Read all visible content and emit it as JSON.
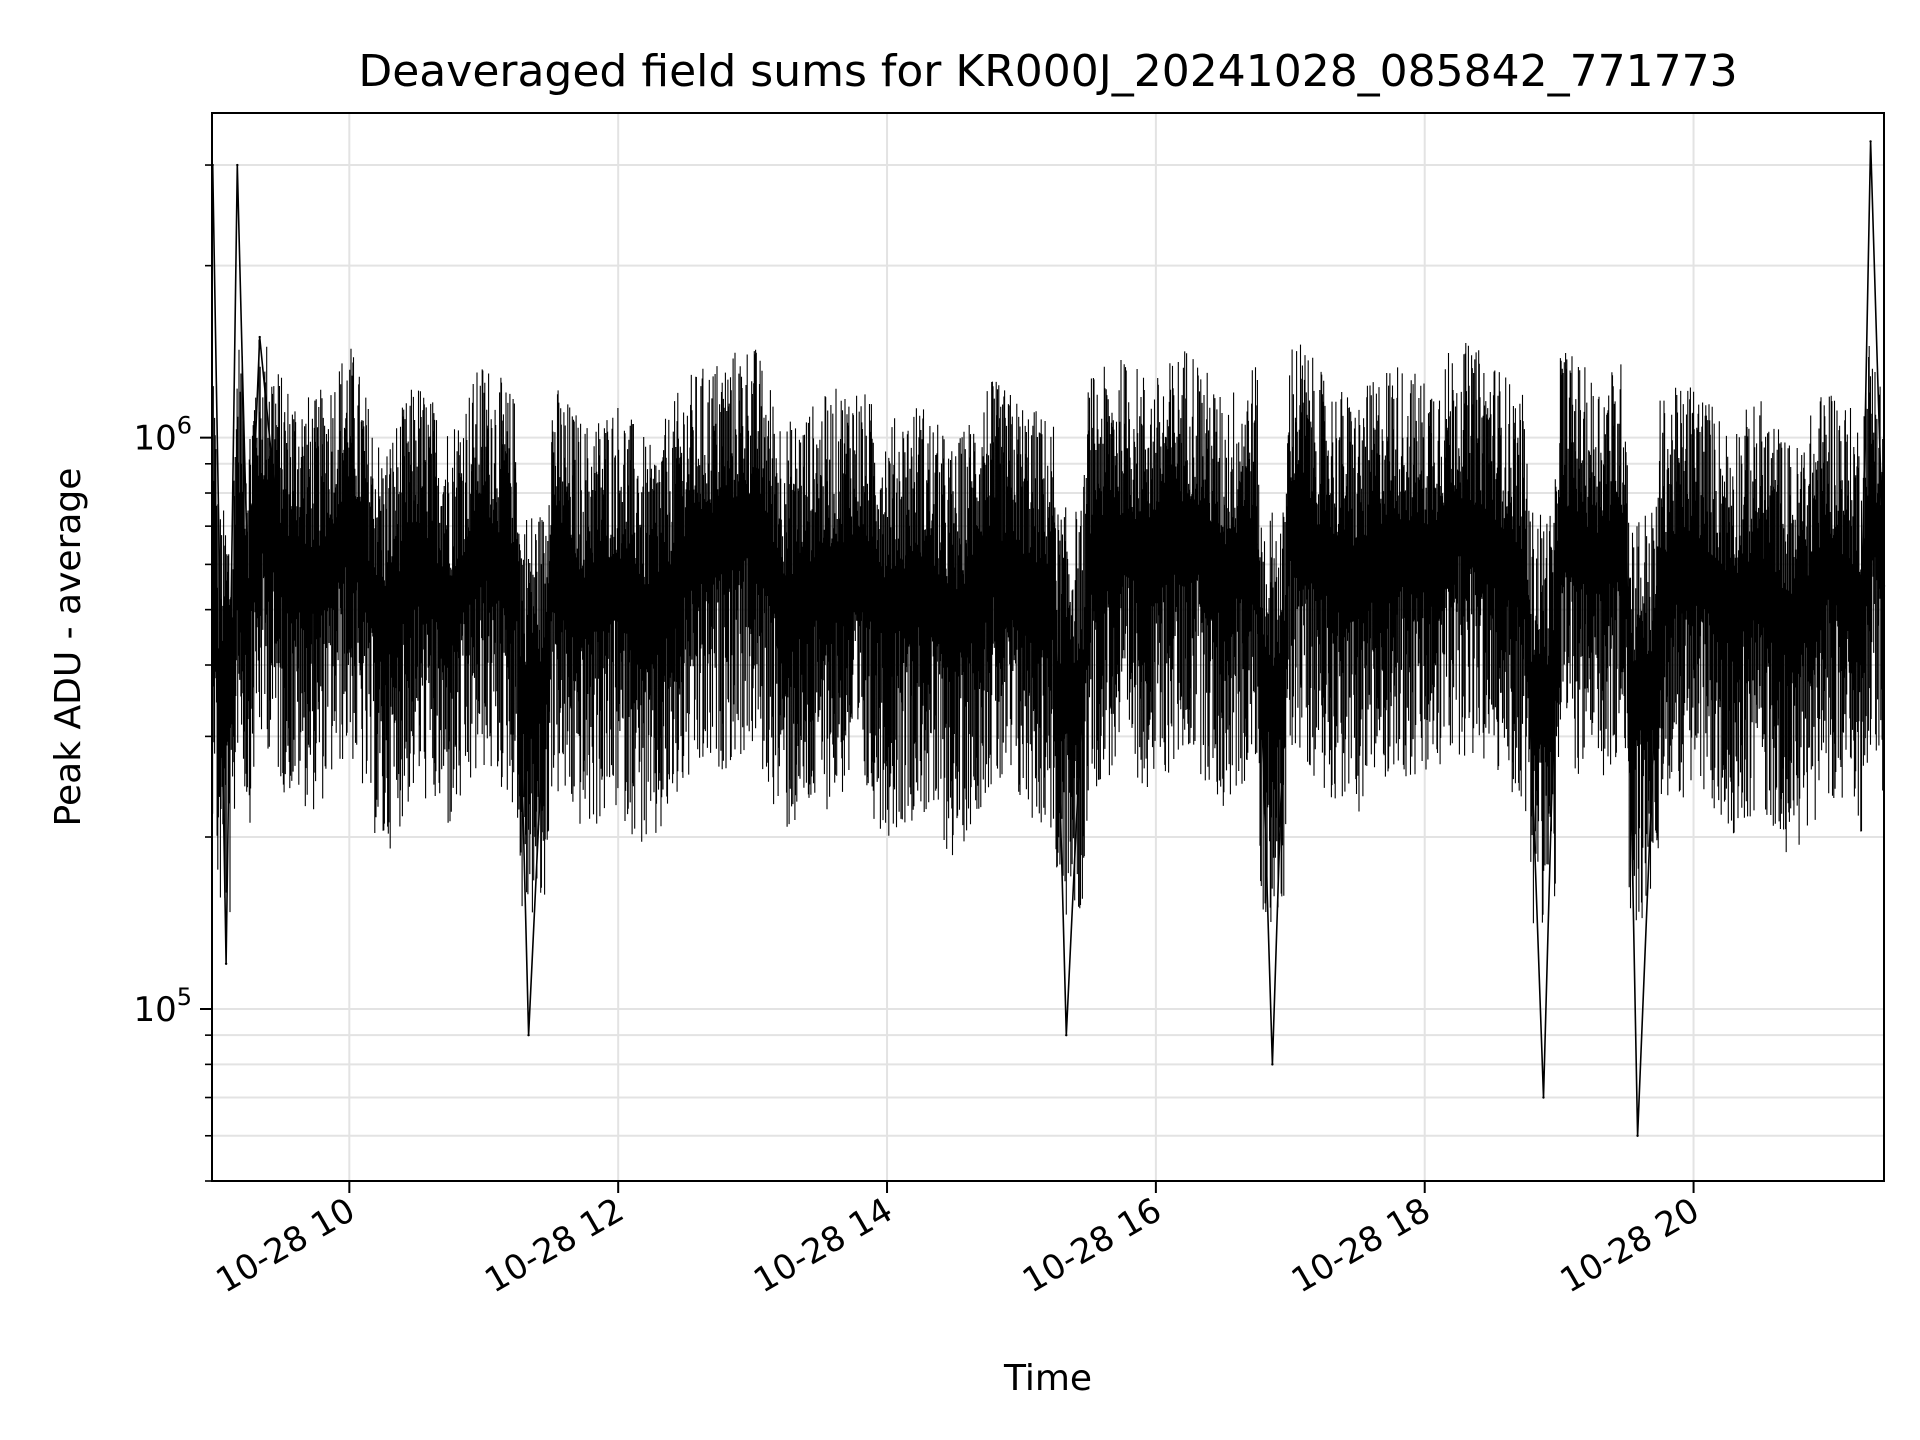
{
  "chart_data": {
    "type": "line",
    "title": "Deaveraged field sums for KR000J_20241028_085842_771773",
    "xlabel": "Time",
    "ylabel": "Peak ADU - average",
    "x_range": [
      "2024-10-28 08:58:42",
      "2024-10-28 21:25:00"
    ],
    "y_scale": "log",
    "ylim": [
      50000,
      3700000
    ],
    "grid": true,
    "x_ticks": [
      {
        "label": "10-28 10",
        "value": "2024-10-28 10:00"
      },
      {
        "label": "10-28 12",
        "value": "2024-10-28 12:00"
      },
      {
        "label": "10-28 14",
        "value": "2024-10-28 14:00"
      },
      {
        "label": "10-28 16",
        "value": "2024-10-28 16:00"
      },
      {
        "label": "10-28 18",
        "value": "2024-10-28 18:00"
      },
      {
        "label": "10-28 20",
        "value": "2024-10-28 20:00"
      }
    ],
    "y_ticks": [
      {
        "base": "10",
        "exp": "5",
        "value": 100000
      },
      {
        "base": "10",
        "exp": "6",
        "value": 1000000
      }
    ],
    "series": [
      {
        "color": "#000000",
        "x": [
          "2024-10-28 08:59",
          "2024-10-28 09:05",
          "2024-10-28 09:10",
          "2024-10-28 09:15",
          "2024-10-28 09:20",
          "2024-10-28 09:30",
          "2024-10-28 09:45",
          "2024-10-28 10:00",
          "2024-10-28 10:15",
          "2024-10-28 10:30",
          "2024-10-28 10:45",
          "2024-10-28 11:00",
          "2024-10-28 11:15",
          "2024-10-28 11:20",
          "2024-10-28 11:30",
          "2024-10-28 11:45",
          "2024-10-28 12:00",
          "2024-10-28 12:15",
          "2024-10-28 12:30",
          "2024-10-28 12:45",
          "2024-10-28 13:00",
          "2024-10-28 13:15",
          "2024-10-28 13:30",
          "2024-10-28 13:45",
          "2024-10-28 14:00",
          "2024-10-28 14:15",
          "2024-10-28 14:30",
          "2024-10-28 14:45",
          "2024-10-28 15:00",
          "2024-10-28 15:15",
          "2024-10-28 15:20",
          "2024-10-28 15:30",
          "2024-10-28 15:45",
          "2024-10-28 16:00",
          "2024-10-28 16:15",
          "2024-10-28 16:30",
          "2024-10-28 16:45",
          "2024-10-28 16:52",
          "2024-10-28 17:00",
          "2024-10-28 17:15",
          "2024-10-28 17:30",
          "2024-10-28 17:45",
          "2024-10-28 18:00",
          "2024-10-28 18:15",
          "2024-10-28 18:30",
          "2024-10-28 18:45",
          "2024-10-28 18:53",
          "2024-10-28 19:00",
          "2024-10-28 19:15",
          "2024-10-28 19:30",
          "2024-10-28 19:35",
          "2024-10-28 19:45",
          "2024-10-28 20:00",
          "2024-10-28 20:15",
          "2024-10-28 20:30",
          "2024-10-28 20:45",
          "2024-10-28 21:00",
          "2024-10-28 21:15",
          "2024-10-28 21:19",
          "2024-10-28 21:25"
        ],
        "y": [
          3000000,
          120000,
          3000000,
          500000,
          1500000,
          600000,
          550000,
          700000,
          450000,
          600000,
          500000,
          650000,
          550000,
          90000,
          600000,
          500000,
          550000,
          450000,
          600000,
          650000,
          700000,
          500000,
          550000,
          600000,
          500000,
          550000,
          450000,
          600000,
          550000,
          500000,
          90000,
          600000,
          650000,
          600000,
          700000,
          550000,
          650000,
          80000,
          750000,
          600000,
          550000,
          650000,
          600000,
          700000,
          650000,
          550000,
          70000,
          700000,
          600000,
          650000,
          60000,
          550000,
          600000,
          500000,
          550000,
          450000,
          600000,
          500000,
          3300000,
          550000
        ]
      }
    ]
  }
}
